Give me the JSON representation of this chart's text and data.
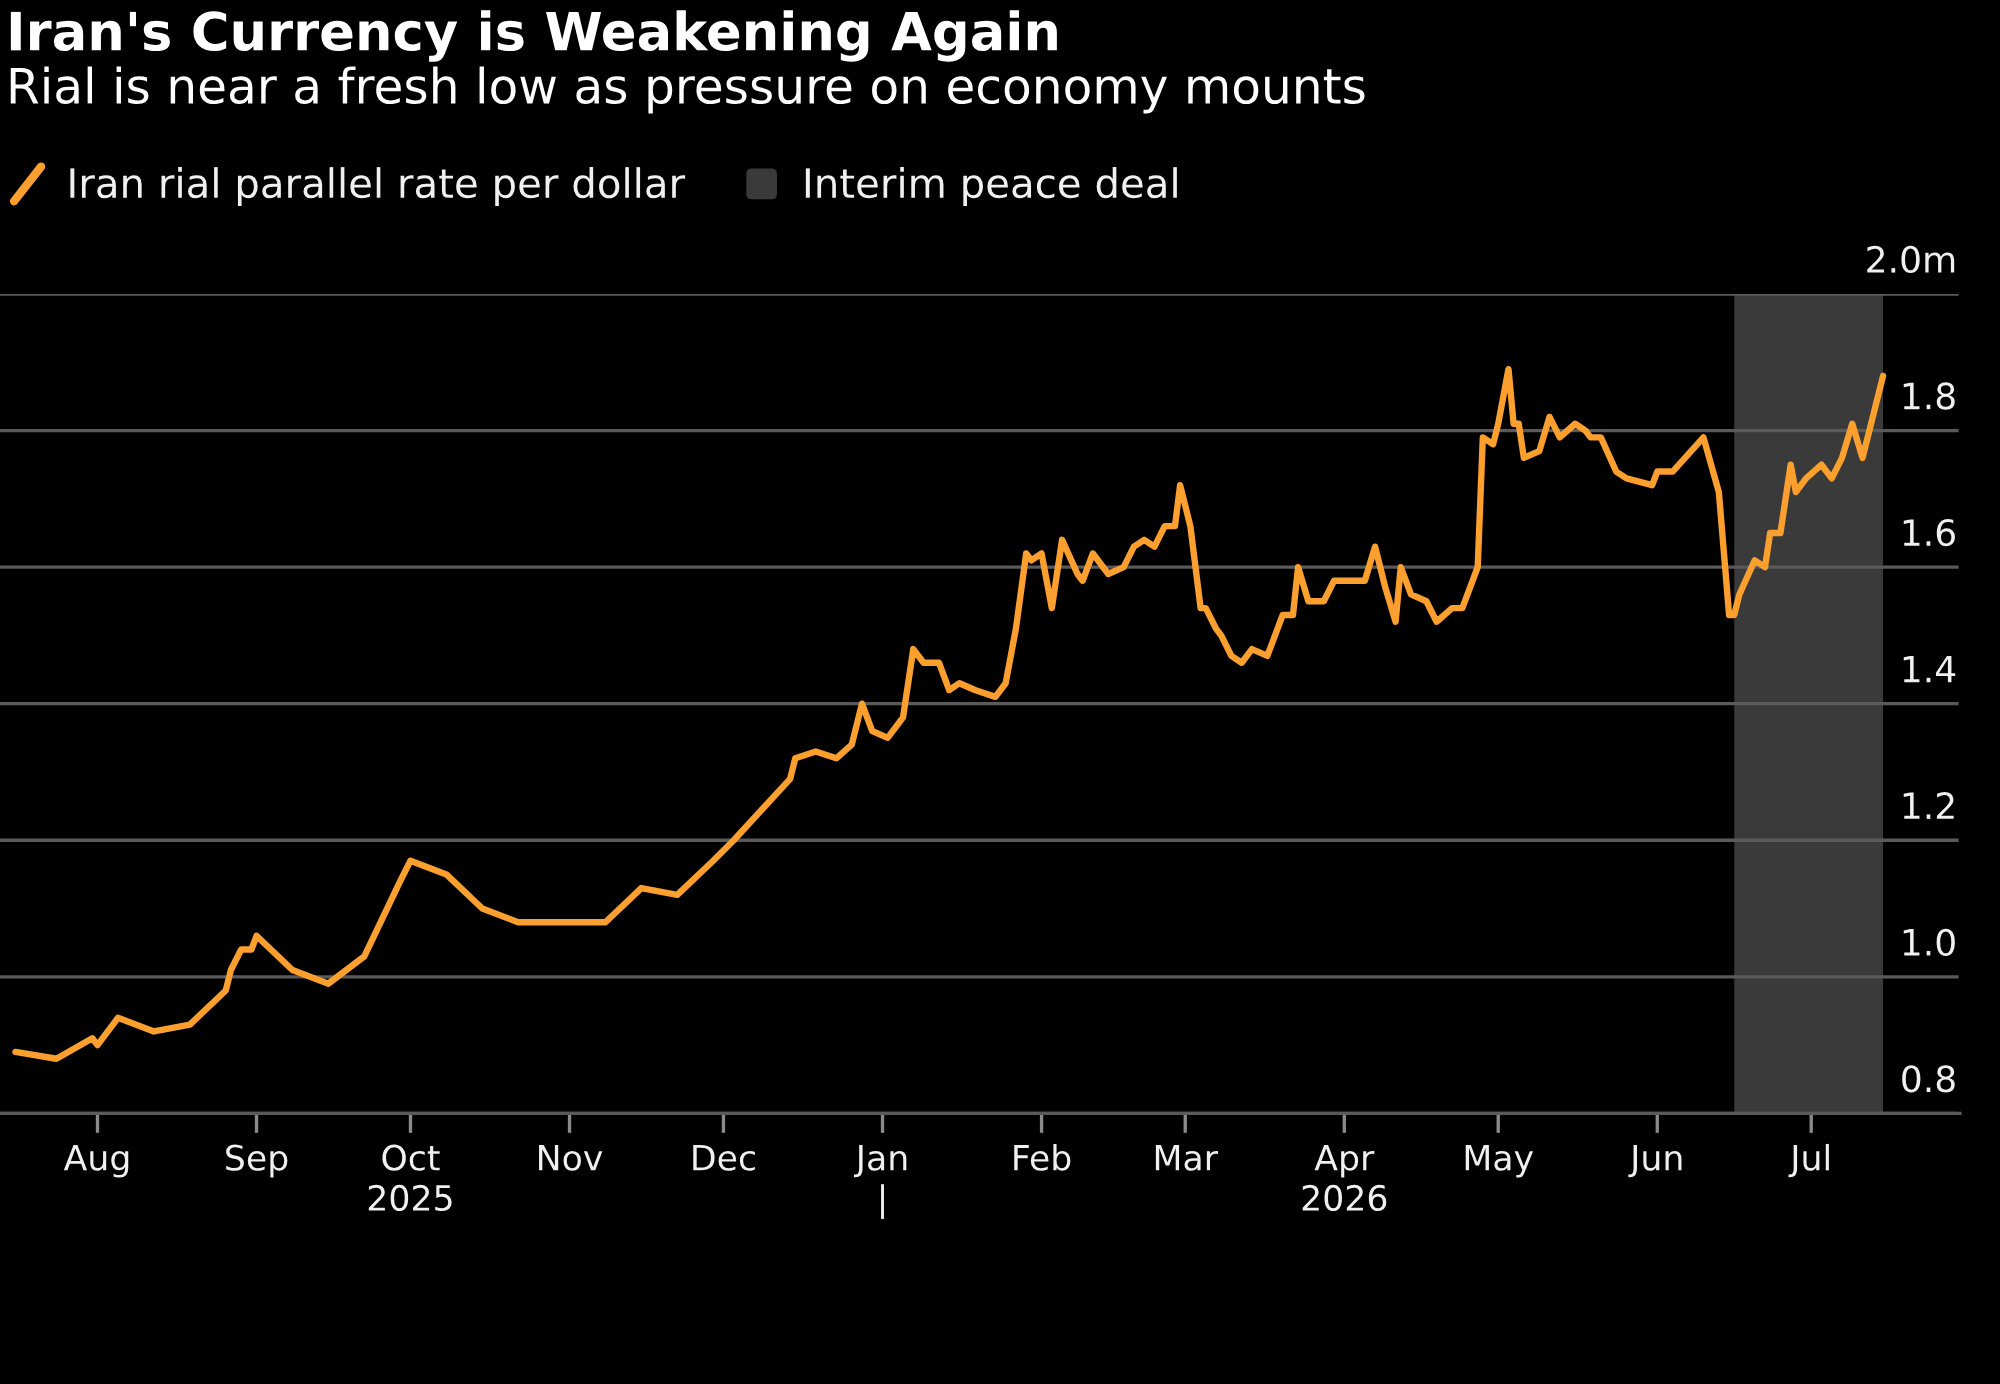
{
  "chart_data": {
    "type": "line",
    "title": "Iran's Currency is Weakening Again",
    "subtitle": "Rial is near a fresh low as pressure on economy mounts",
    "x": [
      "2025-07-16",
      "2025-07-24",
      "2025-07-31",
      "2025-08-01",
      "2025-08-05",
      "2025-08-12",
      "2025-08-19",
      "2025-08-26",
      "2025-08-27",
      "2025-08-29",
      "2025-08-31",
      "2025-09-01",
      "2025-09-08",
      "2025-09-15",
      "2025-09-22",
      "2025-09-29",
      "2025-10-01",
      "2025-10-08",
      "2025-10-15",
      "2025-10-22",
      "2025-10-30",
      "2025-11-02",
      "2025-11-08",
      "2025-11-15",
      "2025-11-22",
      "2025-11-29",
      "2025-12-03",
      "2025-12-14",
      "2025-12-15",
      "2025-12-19",
      "2025-12-23",
      "2025-12-26",
      "2025-12-28",
      "2025-12-30",
      "2026-01-02",
      "2026-01-05",
      "2026-01-07",
      "2026-01-09",
      "2026-01-12",
      "2026-01-14",
      "2026-01-16",
      "2026-01-19",
      "2026-01-23",
      "2026-01-25",
      "2026-01-27",
      "2026-01-29",
      "2026-01-30",
      "2026-02-01",
      "2026-02-03",
      "2026-02-05",
      "2026-02-08",
      "2026-02-09",
      "2026-02-11",
      "2026-02-14",
      "2026-02-17",
      "2026-02-19",
      "2026-02-21",
      "2026-02-23",
      "2026-02-25",
      "2026-02-27",
      "2026-02-28",
      "2026-03-02",
      "2026-03-04",
      "2026-03-05",
      "2026-03-07",
      "2026-03-08",
      "2026-03-10",
      "2026-03-12",
      "2026-03-14",
      "2026-03-17",
      "2026-03-20",
      "2026-03-22",
      "2026-03-23",
      "2026-03-25",
      "2026-03-28",
      "2026-03-30",
      "2026-04-05",
      "2026-04-07",
      "2026-04-09",
      "2026-04-11",
      "2026-04-12",
      "2026-04-14",
      "2026-04-17",
      "2026-04-19",
      "2026-04-22",
      "2026-04-24",
      "2026-04-27",
      "2026-04-28",
      "2026-04-30",
      "2026-05-01",
      "2026-05-03",
      "2026-05-04",
      "2026-05-05",
      "2026-05-06",
      "2026-05-09",
      "2026-05-11",
      "2026-05-13",
      "2026-05-16",
      "2026-05-18",
      "2026-05-19",
      "2026-05-21",
      "2026-05-24",
      "2026-05-26",
      "2026-05-31",
      "2026-06-01",
      "2026-06-02",
      "2026-06-04",
      "2026-06-10",
      "2026-06-13",
      "2026-06-15",
      "2026-06-16",
      "2026-06-17",
      "2026-06-20",
      "2026-06-22",
      "2026-06-23",
      "2026-06-25",
      "2026-06-27",
      "2026-06-28",
      "2026-06-30",
      "2026-07-03",
      "2026-07-05",
      "2026-07-07",
      "2026-07-09",
      "2026-07-11",
      "2026-07-13",
      "2026-07-15"
    ],
    "series": [
      {
        "name": "Iran rial parallel rate per dollar",
        "color": "#fb9f2f",
        "values": [
          0.89,
          0.88,
          0.91,
          0.9,
          0.94,
          0.92,
          0.93,
          0.98,
          1.01,
          1.04,
          1.04,
          1.06,
          1.01,
          0.99,
          1.03,
          1.14,
          1.17,
          1.15,
          1.1,
          1.08,
          1.08,
          1.08,
          1.08,
          1.13,
          1.12,
          1.17,
          1.2,
          1.29,
          1.32,
          1.33,
          1.32,
          1.34,
          1.4,
          1.36,
          1.35,
          1.38,
          1.48,
          1.46,
          1.46,
          1.42,
          1.43,
          1.42,
          1.41,
          1.43,
          1.51,
          1.62,
          1.61,
          1.62,
          1.54,
          1.64,
          1.59,
          1.58,
          1.62,
          1.59,
          1.6,
          1.63,
          1.64,
          1.63,
          1.66,
          1.66,
          1.72,
          1.66,
          1.54,
          1.54,
          1.51,
          1.5,
          1.47,
          1.46,
          1.48,
          1.47,
          1.53,
          1.53,
          1.6,
          1.55,
          1.55,
          1.58,
          1.58,
          1.63,
          1.57,
          1.52,
          1.6,
          1.56,
          1.55,
          1.52,
          1.54,
          1.54,
          1.6,
          1.79,
          1.78,
          1.81,
          1.89,
          1.81,
          1.81,
          1.76,
          1.77,
          1.82,
          1.79,
          1.81,
          1.8,
          1.79,
          1.79,
          1.74,
          1.73,
          1.72,
          1.74,
          1.74,
          1.74,
          1.79,
          1.71,
          1.53,
          1.53,
          1.56,
          1.61,
          1.6,
          1.65,
          1.65,
          1.75,
          1.71,
          1.73,
          1.75,
          1.73,
          1.76,
          1.81,
          1.76,
          1.82,
          1.88
        ]
      }
    ],
    "bands": [
      {
        "axis": "x",
        "from": "2026-06-16",
        "to": "2026-07-15",
        "label": "Interim peace deal",
        "color": "#3a3a3a"
      }
    ],
    "xlim": [
      "2025-07-13",
      "2026-07-30"
    ],
    "xticks": [
      {
        "value": "2025-08-01",
        "label": "Aug"
      },
      {
        "value": "2025-09-01",
        "label": "Sep"
      },
      {
        "value": "2025-10-01",
        "label": "Oct\n2025"
      },
      {
        "value": "2025-11-01",
        "label": "Nov"
      },
      {
        "value": "2025-12-01",
        "label": "Dec"
      },
      {
        "value": "2026-01-01",
        "label": "Jan\n|"
      },
      {
        "value": "2026-02-01",
        "label": "Feb"
      },
      {
        "value": "2026-03-01",
        "label": "Mar"
      },
      {
        "value": "2026-04-01",
        "label": "Apr\n2026"
      },
      {
        "value": "2026-05-01",
        "label": "May"
      },
      {
        "value": "2026-06-01",
        "label": "Jun"
      },
      {
        "value": "2026-07-01",
        "label": "Jul"
      }
    ],
    "ylim": [
      0.8,
      2.0
    ],
    "yticks": [
      0.8,
      {
        "value": 1.0,
        "label": "1.0"
      },
      1.2,
      1.4,
      1.6,
      1.8,
      {
        "value": 2.0,
        "label": "2.0m"
      }
    ],
    "grid": "y",
    "legend": "top left"
  }
}
